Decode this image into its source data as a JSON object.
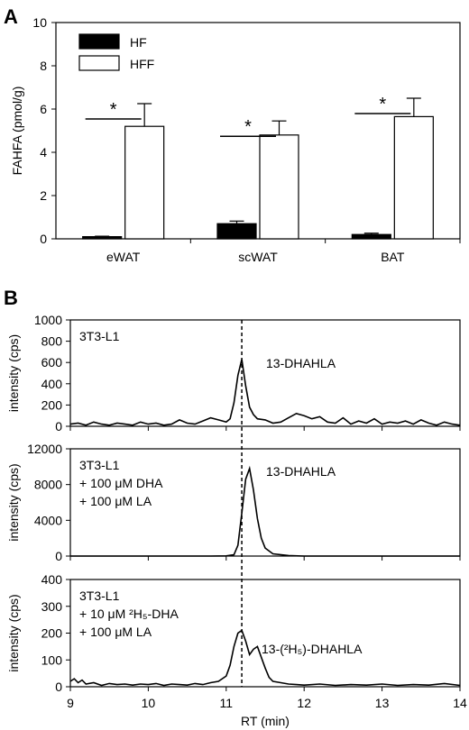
{
  "chart_data": [
    {
      "panel": "A",
      "type": "bar",
      "ylabel": "FAHFA (pmol/g)",
      "ylim": [
        0,
        10
      ],
      "yticks": [
        0,
        2,
        4,
        6,
        8,
        10
      ],
      "categories": [
        "eWAT",
        "scWAT",
        "BAT"
      ],
      "legend_position": "top-left",
      "colors": {
        "HF": "#000000",
        "HFF": "#ffffff"
      },
      "series": [
        {
          "name": "HF",
          "values": [
            0.1,
            0.7,
            0.2
          ],
          "errors": [
            0.02,
            0.12,
            0.06
          ]
        },
        {
          "name": "HFF",
          "values": [
            5.2,
            4.8,
            5.65
          ],
          "errors": [
            1.05,
            0.65,
            0.85
          ]
        }
      ],
      "significance": [
        "*",
        "*",
        "*"
      ]
    },
    {
      "panel": "B",
      "type": "line",
      "xlabel": "RT (min)",
      "xlim": [
        9,
        14
      ],
      "xticks": [
        9,
        10,
        11,
        12,
        13,
        14
      ],
      "reference_line_x": 11.2,
      "subplots": [
        {
          "ylabel": "intensity (cps)",
          "ylim": [
            0,
            1000
          ],
          "yticks": [
            0,
            200,
            400,
            600,
            800,
            1000
          ],
          "sample_lines": [
            "3T3-L1"
          ],
          "peak_label": "13-DHAHLA",
          "x": [
            9.0,
            9.1,
            9.2,
            9.3,
            9.4,
            9.5,
            9.6,
            9.7,
            9.8,
            9.9,
            10.0,
            10.1,
            10.2,
            10.3,
            10.4,
            10.5,
            10.6,
            10.7,
            10.8,
            10.9,
            11.0,
            11.05,
            11.1,
            11.15,
            11.2,
            11.25,
            11.3,
            11.35,
            11.4,
            11.5,
            11.6,
            11.7,
            11.8,
            11.9,
            12.0,
            12.1,
            12.2,
            12.3,
            12.4,
            12.5,
            12.6,
            12.7,
            12.8,
            12.9,
            13.0,
            13.1,
            13.2,
            13.3,
            13.4,
            13.5,
            13.6,
            13.7,
            13.8,
            13.9,
            14.0
          ],
          "y": [
            20,
            30,
            10,
            40,
            20,
            10,
            30,
            20,
            10,
            40,
            20,
            30,
            10,
            20,
            60,
            30,
            20,
            50,
            80,
            60,
            40,
            70,
            220,
            480,
            630,
            380,
            180,
            110,
            70,
            60,
            30,
            40,
            80,
            120,
            100,
            70,
            90,
            40,
            30,
            80,
            20,
            50,
            30,
            70,
            20,
            40,
            30,
            50,
            20,
            60,
            30,
            10,
            40,
            20,
            10
          ]
        },
        {
          "ylabel": "intensity (cps)",
          "ylim": [
            0,
            12000
          ],
          "yticks": [
            0,
            4000,
            8000,
            12000
          ],
          "sample_lines": [
            "3T3-L1",
            "+ 100 μM DHA",
            "+ 100 μM LA"
          ],
          "peak_label": "13-DHAHLA",
          "x": [
            9.0,
            10.0,
            10.8,
            11.0,
            11.1,
            11.15,
            11.2,
            11.25,
            11.3,
            11.35,
            11.4,
            11.45,
            11.5,
            11.6,
            11.8,
            12.0,
            13.0,
            14.0
          ],
          "y": [
            0,
            0,
            0,
            20,
            150,
            1200,
            4800,
            8600,
            9800,
            7400,
            4200,
            2000,
            900,
            250,
            60,
            0,
            0,
            0
          ]
        },
        {
          "ylabel": "intensity (cps)",
          "ylim": [
            0,
            400
          ],
          "yticks": [
            0,
            100,
            200,
            300,
            400
          ],
          "sample_lines": [
            "3T3-L1",
            "+ 10 μM ²H₅-DHA",
            "+ 100 μM LA"
          ],
          "peak_label": "13-(²H₅)-DHAHLA",
          "x": [
            9.0,
            9.05,
            9.1,
            9.15,
            9.2,
            9.3,
            9.4,
            9.5,
            9.6,
            9.7,
            9.8,
            9.9,
            10.0,
            10.1,
            10.2,
            10.3,
            10.4,
            10.5,
            10.6,
            10.7,
            10.8,
            10.9,
            11.0,
            11.05,
            11.1,
            11.15,
            11.2,
            11.25,
            11.3,
            11.35,
            11.4,
            11.45,
            11.5,
            11.55,
            11.6,
            11.7,
            11.8,
            11.9,
            12.0,
            12.2,
            12.4,
            12.6,
            12.8,
            13.0,
            13.2,
            13.4,
            13.6,
            13.8,
            14.0
          ],
          "y": [
            20,
            30,
            15,
            25,
            10,
            15,
            5,
            12,
            8,
            10,
            6,
            10,
            8,
            12,
            5,
            10,
            8,
            6,
            12,
            8,
            15,
            20,
            40,
            80,
            150,
            200,
            210,
            170,
            120,
            140,
            150,
            110,
            70,
            35,
            20,
            15,
            10,
            8,
            6,
            10,
            5,
            8,
            6,
            10,
            5,
            8,
            6,
            12,
            5
          ]
        }
      ]
    }
  ],
  "panels": {
    "a_letter": "A",
    "b_letter": "B"
  }
}
